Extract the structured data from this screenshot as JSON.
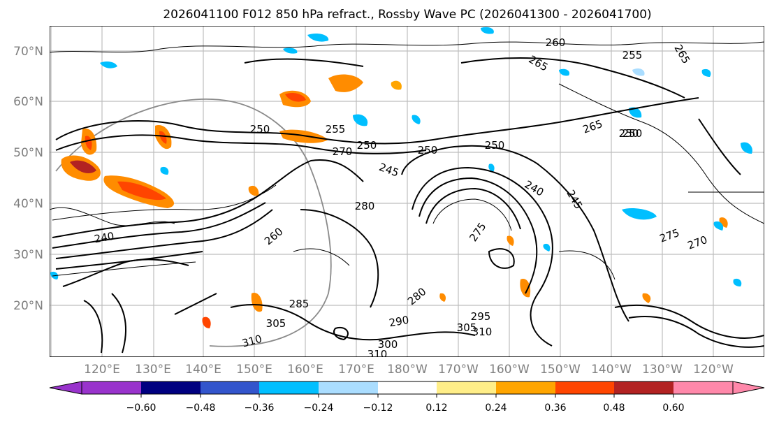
{
  "title": "2026041100 F012 850 hPa refract., Rossby Wave PC (2026041300 - 2026041700)",
  "lat_labels": [
    "70°N",
    "60°N",
    "50°N",
    "40°N",
    "30°N",
    "20°N"
  ],
  "lon_labels": [
    "120°E",
    "130°E",
    "140°E",
    "150°E",
    "160°E",
    "170°E",
    "180°W",
    "170°W",
    "160°W",
    "150°W",
    "140°W",
    "130°W",
    "120°W"
  ],
  "colorbar": {
    "colors": [
      "#9933cc",
      "#000080",
      "#3355cc",
      "#00bfff",
      "#aaddff",
      "#ffffff",
      "#ffee88",
      "#ffa500",
      "#ff4500",
      "#b22222",
      "#ff88aa"
    ],
    "ticks": [
      "−0.60",
      "−0.48",
      "−0.36",
      "−0.24",
      "−0.12",
      "0.12",
      "0.24",
      "0.36",
      "0.48",
      "0.60"
    ]
  },
  "contour_labels": [
    "260",
    "265",
    "255",
    "250",
    "265",
    "250",
    "255",
    "250",
    "270",
    "250",
    "245",
    "250",
    "240",
    "245",
    "280",
    "275",
    "260",
    "240",
    "275",
    "270",
    "285",
    "280",
    "290",
    "305",
    "310",
    "300",
    "310",
    "305",
    "295",
    "310",
    "265",
    "250"
  ]
}
